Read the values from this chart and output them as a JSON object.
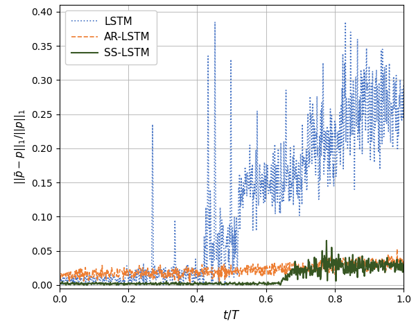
{
  "title": "",
  "xlabel": "$t/T$",
  "ylabel": "$||\\tilde{p} - p||_1 / ||p||_1$",
  "xlim": [
    0.0,
    1.0
  ],
  "ylim": [
    -0.005,
    0.41
  ],
  "yticks": [
    0.0,
    0.05,
    0.1,
    0.15,
    0.2,
    0.25,
    0.3,
    0.35,
    0.4
  ],
  "xticks": [
    0.0,
    0.2,
    0.4,
    0.6,
    0.8,
    1.0
  ],
  "legend_labels": [
    "LSTM",
    "AR-LSTM",
    "SS-LSTM"
  ],
  "lstm_color": "#4472c4",
  "ar_lstm_color": "#ed7d31",
  "ss_lstm_color": "#375623",
  "figsize": [
    6.0,
    4.7
  ],
  "dpi": 100,
  "n_points": 800
}
